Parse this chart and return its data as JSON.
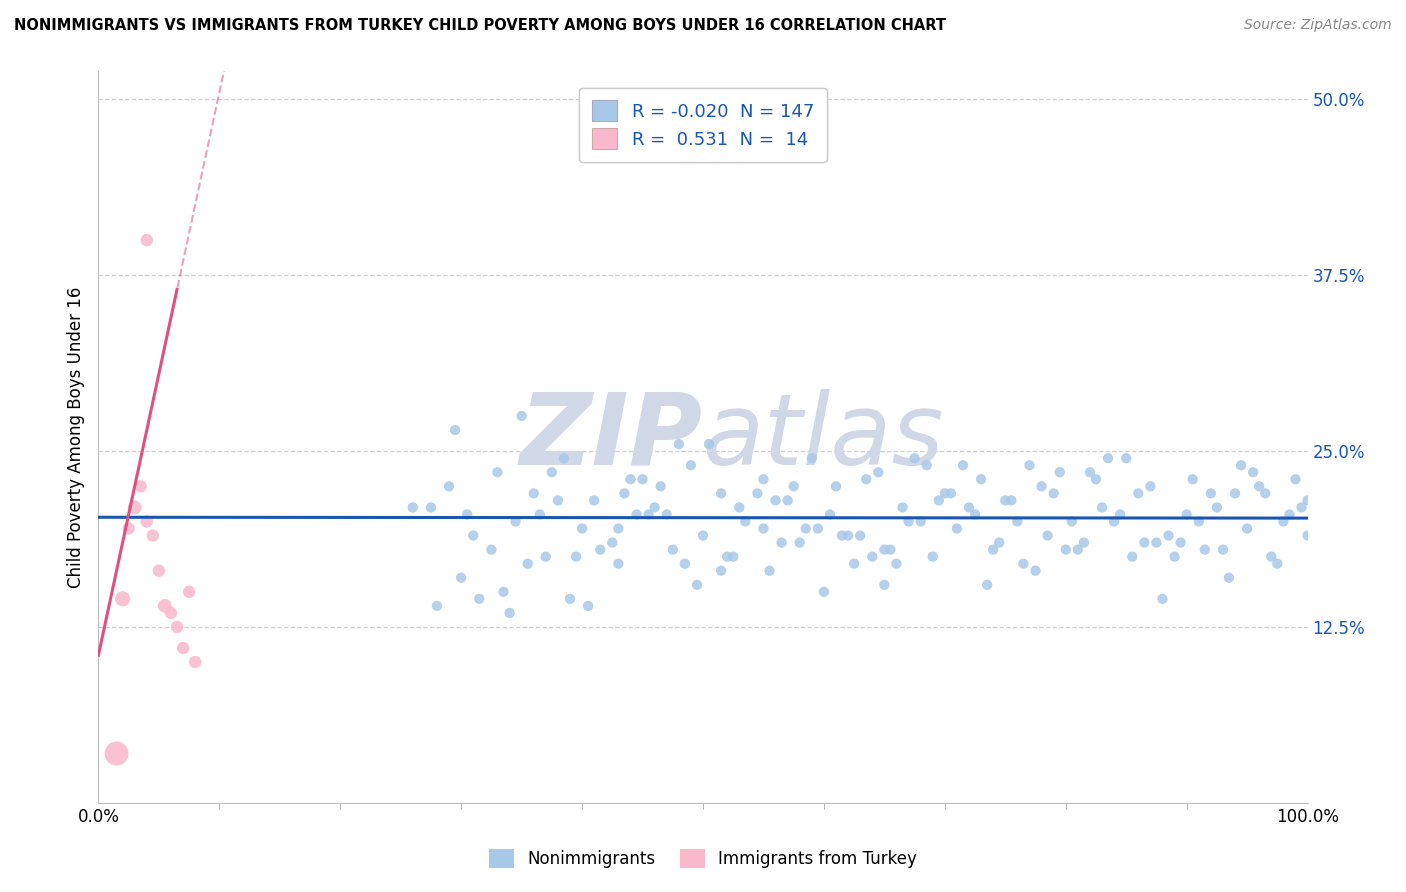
{
  "title": "NONIMMIGRANTS VS IMMIGRANTS FROM TURKEY CHILD POVERTY AMONG BOYS UNDER 16 CORRELATION CHART",
  "source": "Source: ZipAtlas.com",
  "ylabel": "Child Poverty Among Boys Under 16",
  "xlim": [
    0,
    100
  ],
  "ylim": [
    0,
    52
  ],
  "ytick_labels": [
    "12.5%",
    "25.0%",
    "37.5%",
    "50.0%"
  ],
  "ytick_values": [
    12.5,
    25.0,
    37.5,
    50.0
  ],
  "legend_r_blue": "-0.020",
  "legend_n_blue": "147",
  "legend_r_pink": "0.531",
  "legend_n_pink": "14",
  "blue_scatter_color": "#a8c8e8",
  "blue_line_color": "#1a56b0",
  "pink_scatter_color": "#f9b8cc",
  "pink_line_color": "#e05080",
  "watermark_color": "#d0d8e8",
  "background_color": "#ffffff",
  "grid_color": "#d0d0d0",
  "blue_x": [
    27.5,
    29.0,
    31.0,
    32.5,
    33.0,
    34.5,
    36.0,
    37.0,
    38.5,
    40.0,
    41.0,
    42.5,
    43.0,
    44.0,
    45.5,
    46.0,
    47.5,
    49.0,
    50.0,
    51.5,
    52.0,
    53.5,
    55.0,
    56.5,
    57.0,
    58.5,
    59.0,
    60.5,
    61.0,
    62.5,
    63.0,
    64.5,
    65.0,
    66.5,
    67.0,
    68.5,
    69.0,
    70.5,
    71.0,
    72.5,
    73.0,
    74.5,
    75.0,
    76.5,
    77.0,
    78.5,
    79.0,
    80.5,
    81.0,
    82.5,
    83.0,
    84.5,
    85.0,
    86.5,
    87.0,
    88.5,
    89.0,
    90.5,
    91.0,
    92.5,
    93.0,
    94.5,
    95.0,
    96.5,
    97.0,
    98.5,
    99.0,
    100.0,
    28.0,
    30.0,
    35.0,
    39.0,
    43.5,
    48.0,
    52.5,
    57.5,
    62.0,
    67.5,
    72.0,
    77.5,
    82.0,
    87.5,
    92.0,
    97.5,
    31.5,
    36.5,
    41.5,
    46.5,
    51.5,
    56.0,
    61.5,
    66.0,
    71.5,
    76.0,
    81.5,
    86.0,
    91.5,
    96.0,
    29.5,
    34.0,
    39.5,
    44.5,
    49.5,
    54.5,
    59.5,
    64.0,
    69.5,
    74.0,
    79.5,
    84.0,
    89.5,
    94.0,
    99.5,
    33.5,
    38.0,
    43.0,
    48.5,
    53.0,
    58.0,
    63.5,
    68.0,
    73.5,
    78.0,
    83.5,
    88.0,
    93.5,
    98.0,
    26.0,
    37.5,
    47.0,
    55.5,
    65.5,
    75.5,
    85.5,
    95.5,
    30.5,
    40.5,
    50.5,
    60.0,
    70.0,
    80.0,
    90.0,
    100.0,
    35.5,
    45.0,
    55.0,
    65.0
  ],
  "blue_y": [
    21.0,
    22.5,
    19.0,
    18.0,
    23.5,
    20.0,
    22.0,
    17.5,
    24.5,
    19.5,
    21.5,
    18.5,
    17.0,
    23.0,
    20.5,
    21.0,
    18.0,
    24.0,
    19.0,
    22.0,
    17.5,
    20.0,
    23.0,
    18.5,
    21.5,
    19.5,
    24.5,
    20.5,
    22.5,
    17.0,
    19.0,
    23.5,
    18.0,
    21.0,
    20.0,
    24.0,
    17.5,
    22.0,
    19.5,
    20.5,
    23.0,
    18.5,
    21.5,
    17.0,
    24.0,
    19.0,
    22.0,
    20.0,
    18.0,
    23.0,
    21.0,
    20.5,
    24.5,
    18.5,
    22.5,
    19.0,
    17.5,
    23.0,
    20.0,
    21.0,
    18.0,
    24.0,
    19.5,
    22.0,
    17.5,
    20.5,
    23.0,
    21.5,
    14.0,
    16.0,
    27.5,
    14.5,
    22.0,
    25.5,
    17.5,
    22.5,
    19.0,
    24.5,
    21.0,
    16.5,
    23.5,
    18.5,
    22.0,
    17.0,
    14.5,
    20.5,
    18.0,
    22.5,
    16.5,
    21.5,
    19.0,
    17.0,
    24.0,
    20.0,
    18.5,
    22.0,
    18.0,
    22.5,
    26.5,
    13.5,
    17.5,
    20.5,
    15.5,
    22.0,
    19.5,
    17.5,
    21.5,
    18.0,
    23.5,
    20.0,
    18.5,
    22.0,
    21.0,
    15.0,
    21.5,
    19.5,
    17.0,
    21.0,
    18.5,
    23.0,
    20.0,
    15.5,
    22.5,
    24.5,
    14.5,
    16.0,
    20.0,
    21.0,
    23.5,
    20.5,
    16.5,
    18.0,
    21.5,
    17.5,
    23.5,
    20.5,
    14.0,
    25.5,
    15.0,
    22.0,
    18.0,
    20.5,
    19.0,
    17.0,
    23.0,
    19.5,
    15.5
  ],
  "pink_x": [
    1.5,
    2.0,
    2.5,
    3.0,
    3.5,
    4.0,
    4.5,
    5.0,
    5.5,
    6.0,
    6.5,
    7.0,
    7.5,
    8.0
  ],
  "pink_y": [
    3.5,
    14.5,
    19.5,
    21.0,
    22.5,
    20.0,
    19.0,
    16.5,
    14.0,
    13.5,
    12.5,
    11.0,
    15.0,
    10.0
  ],
  "pink_sizes": [
    300,
    120,
    80,
    100,
    80,
    80,
    80,
    80,
    100,
    80,
    80,
    80,
    80,
    80
  ],
  "pink_outlier_x": 4.0,
  "pink_outlier_y": 40.0,
  "pink_outlier_size": 80,
  "blue_trend_y_intercept": 20.3,
  "blue_trend_slope": -0.0006,
  "pink_trend_slope": 4.0,
  "pink_trend_intercept": 10.5,
  "pink_solid_x_start": 0.0,
  "pink_solid_x_end": 6.5,
  "pink_dash_x_start": 5.0,
  "pink_dash_x_end": 13.0
}
